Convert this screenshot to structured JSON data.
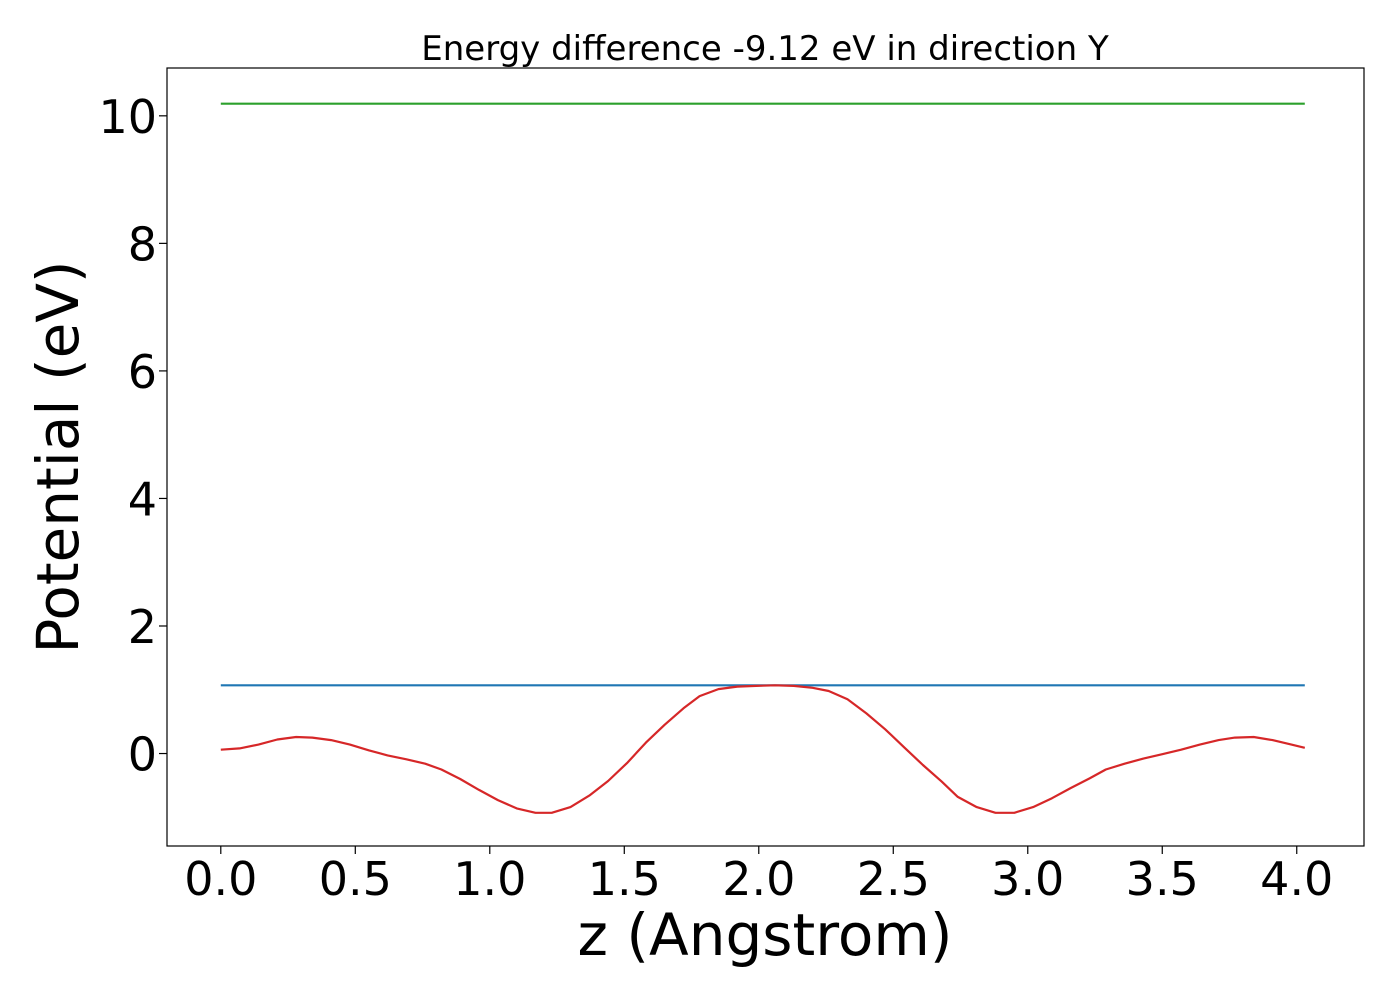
{
  "chart_data": {
    "type": "line",
    "title": "Energy difference -9.12 eV in direction Y",
    "xlabel": "z (Angstrom)",
    "ylabel": "Potential (eV)",
    "xlim": [
      -0.2,
      4.25
    ],
    "ylim": [
      -1.45,
      10.75
    ],
    "xticks": [
      0.0,
      0.5,
      1.0,
      1.5,
      2.0,
      2.5,
      3.0,
      3.5,
      4.0
    ],
    "xtick_labels": [
      "0.0",
      "0.5",
      "1.0",
      "1.5",
      "2.0",
      "2.5",
      "3.0",
      "3.5",
      "4.0"
    ],
    "yticks": [
      0,
      2,
      4,
      6,
      8,
      10
    ],
    "ytick_labels": [
      "0",
      "2",
      "4",
      "6",
      "8",
      "10"
    ],
    "grid": false,
    "series": [
      {
        "color": "#2ca02c",
        "x": [
          0.0,
          4.03
        ],
        "y": [
          10.19,
          10.19
        ]
      },
      {
        "color": "#1f77b4",
        "x": [
          0.0,
          4.03
        ],
        "y": [
          1.07,
          1.07
        ]
      },
      {
        "color": "#d62728",
        "x": [
          0.0,
          0.07,
          0.14,
          0.21,
          0.28,
          0.34,
          0.41,
          0.48,
          0.55,
          0.62,
          0.69,
          0.76,
          0.82,
          0.89,
          0.96,
          1.03,
          1.1,
          1.17,
          1.23,
          1.3,
          1.37,
          1.44,
          1.51,
          1.58,
          1.65,
          1.72,
          1.78,
          1.85,
          1.92,
          1.99,
          2.06,
          2.13,
          2.2,
          2.26,
          2.33,
          2.4,
          2.47,
          2.54,
          2.61,
          2.68,
          2.74,
          2.81,
          2.88,
          2.95,
          3.02,
          3.09,
          3.16,
          3.23,
          3.29,
          3.36,
          3.43,
          3.5,
          3.57,
          3.64,
          3.71,
          3.77,
          3.84,
          3.91,
          3.98,
          4.03
        ],
        "y": [
          0.06,
          0.08,
          0.14,
          0.22,
          0.26,
          0.25,
          0.21,
          0.14,
          0.05,
          -0.03,
          -0.09,
          -0.16,
          -0.25,
          -0.4,
          -0.57,
          -0.73,
          -0.86,
          -0.93,
          -0.93,
          -0.84,
          -0.66,
          -0.43,
          -0.15,
          0.17,
          0.45,
          0.71,
          0.9,
          1.01,
          1.05,
          1.06,
          1.07,
          1.06,
          1.03,
          0.98,
          0.85,
          0.63,
          0.38,
          0.1,
          -0.18,
          -0.44,
          -0.68,
          -0.84,
          -0.93,
          -0.93,
          -0.84,
          -0.7,
          -0.54,
          -0.39,
          -0.25,
          -0.16,
          -0.08,
          -0.01,
          0.06,
          0.14,
          0.21,
          0.25,
          0.26,
          0.21,
          0.14,
          0.09
        ]
      }
    ]
  }
}
